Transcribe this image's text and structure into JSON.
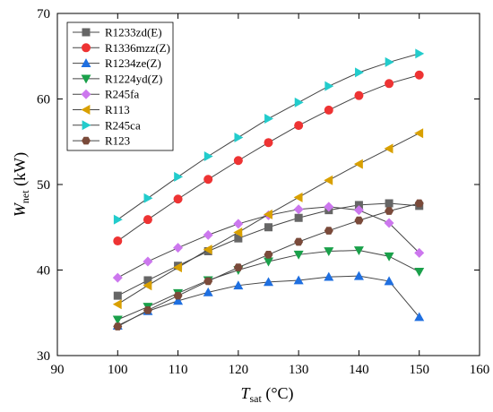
{
  "chart_data": {
    "type": "line",
    "title": "",
    "xlabel": {
      "main": "T",
      "sub": "sat",
      "unit": " (°C)"
    },
    "ylabel": {
      "main": "W",
      "sub": "net",
      "unit": " (kW)"
    },
    "xlim": [
      90,
      160
    ],
    "ylim": [
      30,
      70
    ],
    "xticks": [
      90,
      100,
      110,
      120,
      130,
      140,
      150,
      160
    ],
    "yticks": [
      30,
      40,
      50,
      60,
      70
    ],
    "x": [
      100,
      105,
      110,
      115,
      120,
      125,
      130,
      135,
      140,
      145,
      150
    ],
    "legend_position": "top-left",
    "series": [
      {
        "name": "R1233zd(E)",
        "color": "#666666",
        "marker": "square",
        "values": [
          37.0,
          38.8,
          40.5,
          42.2,
          43.7,
          45.0,
          46.1,
          47.0,
          47.6,
          47.8,
          47.5
        ]
      },
      {
        "name": "R1336mzz(Z)",
        "color": "#ee3333",
        "marker": "circle",
        "values": [
          43.4,
          45.9,
          48.3,
          50.6,
          52.8,
          54.9,
          56.9,
          58.7,
          60.4,
          61.8,
          62.8
        ]
      },
      {
        "name": "R1234ze(Z)",
        "color": "#1f6fe0",
        "marker": "triangle-up",
        "values": [
          33.5,
          35.2,
          36.4,
          37.4,
          38.2,
          38.6,
          38.8,
          39.2,
          39.3,
          38.7,
          34.5
        ]
      },
      {
        "name": "R1224yd(Z)",
        "color": "#1aa04a",
        "marker": "triangle-down",
        "values": [
          34.2,
          35.7,
          37.3,
          38.8,
          40.0,
          41.0,
          41.8,
          42.2,
          42.3,
          41.6,
          39.8
        ]
      },
      {
        "name": "R245fa",
        "color": "#cc77ee",
        "marker": "diamond",
        "values": [
          39.1,
          41.0,
          42.6,
          44.1,
          45.4,
          46.4,
          47.1,
          47.4,
          47.0,
          45.5,
          42.0
        ]
      },
      {
        "name": "R113",
        "color": "#d9a000",
        "marker": "triangle-left",
        "values": [
          36.0,
          38.2,
          40.3,
          42.4,
          44.4,
          46.5,
          48.5,
          50.5,
          52.4,
          54.2,
          56.0
        ]
      },
      {
        "name": "R245ca",
        "color": "#22cccc",
        "marker": "triangle-right",
        "values": [
          45.9,
          48.4,
          50.9,
          53.3,
          55.5,
          57.7,
          59.6,
          61.5,
          63.1,
          64.3,
          65.3
        ]
      },
      {
        "name": "R123",
        "color": "#7a4a3a",
        "marker": "hexagon",
        "values": [
          33.4,
          35.3,
          37.0,
          38.7,
          40.3,
          41.8,
          43.3,
          44.6,
          45.8,
          46.9,
          47.8
        ]
      }
    ]
  }
}
